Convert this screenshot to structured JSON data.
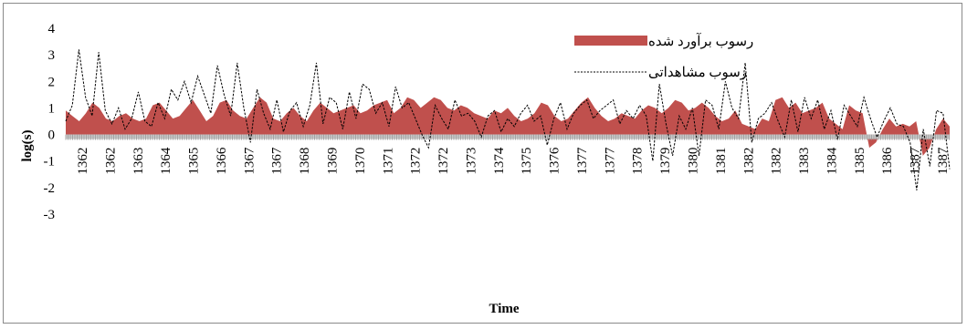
{
  "chart_data": {
    "type": "area",
    "title": "",
    "xlabel": "Time",
    "ylabel": "log(s)",
    "ylim": [
      -3,
      4
    ],
    "yticks": [
      "4",
      "3",
      "2",
      "1",
      "0",
      "-1",
      "-2",
      "-3"
    ],
    "xtick_labels": [
      "1362",
      "1362",
      "1363",
      "1364",
      "1365",
      "1366",
      "1367",
      "1367",
      "1368",
      "1369",
      "1370",
      "1371",
      "1372",
      "1372",
      "1373",
      "1374",
      "1375",
      "1376",
      "1377",
      "1377",
      "1378",
      "1379",
      "1380",
      "1381",
      "1382",
      "1382",
      "1383",
      "1384",
      "1385",
      "1386",
      "1387",
      "1387"
    ],
    "legend": {
      "position": "top-right"
    },
    "series": [
      {
        "name": "رسوب برآورد شده",
        "kind": "area",
        "color": "#c0504d",
        "values": [
          0.9,
          0.7,
          0.5,
          0.8,
          1.2,
          1.0,
          0.6,
          0.5,
          0.7,
          0.8,
          0.6,
          0.5,
          0.6,
          1.1,
          1.2,
          0.9,
          0.6,
          0.7,
          1.0,
          1.3,
          0.9,
          0.5,
          0.7,
          1.2,
          1.3,
          0.9,
          0.7,
          0.6,
          1.0,
          1.4,
          1.2,
          0.6,
          0.5,
          0.8,
          1.0,
          0.7,
          0.5,
          0.9,
          1.2,
          1.0,
          0.8,
          0.9,
          1.0,
          1.1,
          0.8,
          0.9,
          1.1,
          1.2,
          1.3,
          0.8,
          1.0,
          1.4,
          1.3,
          1.0,
          1.2,
          1.4,
          1.3,
          1.0,
          0.9,
          1.1,
          1.0,
          0.8,
          0.7,
          0.6,
          0.9,
          0.8,
          1.0,
          0.7,
          0.5,
          0.6,
          0.8,
          1.2,
          1.1,
          0.7,
          0.5,
          0.6,
          0.9,
          1.2,
          1.4,
          1.0,
          0.7,
          0.5,
          0.6,
          0.8,
          0.7,
          0.6,
          0.9,
          1.1,
          1.0,
          0.8,
          1.0,
          1.3,
          1.2,
          0.9,
          1.0,
          1.2,
          1.0,
          0.7,
          0.5,
          0.6,
          0.9,
          0.4,
          0.3,
          0.2,
          0.6,
          0.5,
          1.3,
          1.4,
          1.0,
          1.2,
          0.8,
          0.9,
          1.0,
          1.2,
          0.6,
          0.4,
          0.2,
          1.1,
          0.9,
          0.8,
          -0.5,
          -0.3,
          0.2,
          0.6,
          0.3,
          0.4,
          0.3,
          0.5,
          -0.8,
          -0.5,
          0.2,
          0.6,
          0.3
        ]
      },
      {
        "name": "رسوب مشاهداتی",
        "kind": "line",
        "style": "dashed",
        "color": "#000000",
        "values": [
          0.5,
          1.1,
          3.2,
          1.4,
          0.7,
          3.1,
          0.9,
          0.4,
          1.0,
          0.2,
          0.6,
          1.6,
          0.5,
          0.3,
          1.2,
          0.6,
          1.7,
          1.3,
          2.0,
          1.2,
          2.2,
          1.5,
          0.8,
          2.6,
          1.5,
          0.7,
          2.7,
          1.0,
          -0.3,
          1.7,
          0.8,
          0.2,
          1.3,
          0.1,
          0.9,
          1.2,
          0.3,
          1.1,
          2.7,
          0.4,
          1.4,
          1.2,
          0.2,
          1.6,
          0.6,
          1.9,
          1.7,
          0.8,
          1.2,
          0.3,
          1.8,
          1.0,
          1.2,
          0.6,
          0.0,
          -0.5,
          1.1,
          0.6,
          0.2,
          1.3,
          0.7,
          0.8,
          0.5,
          -0.1,
          0.7,
          0.9,
          0.1,
          0.6,
          0.3,
          0.8,
          1.1,
          0.5,
          0.7,
          -0.4,
          0.6,
          1.2,
          0.2,
          0.8,
          1.1,
          1.3,
          0.6,
          0.9,
          1.1,
          1.3,
          0.4,
          0.9,
          0.6,
          1.1,
          0.7,
          -1.0,
          1.9,
          0.4,
          -0.8,
          0.7,
          0.2,
          1.0,
          -0.8,
          1.3,
          1.1,
          0.2,
          2.0,
          1.0,
          0.6,
          2.7,
          -0.3,
          0.6,
          0.8,
          1.2,
          0.5,
          -0.1,
          1.3,
          0.1,
          1.4,
          0.6,
          1.3,
          0.2,
          0.9,
          -0.2,
          1.1,
          0.7,
          0.3,
          1.4,
          0.6,
          -0.1,
          0.5,
          1.0,
          0.4,
          0.3,
          -0.3,
          -2.1,
          0.2,
          -1.2,
          0.9,
          0.8,
          -1.3
        ]
      }
    ]
  }
}
